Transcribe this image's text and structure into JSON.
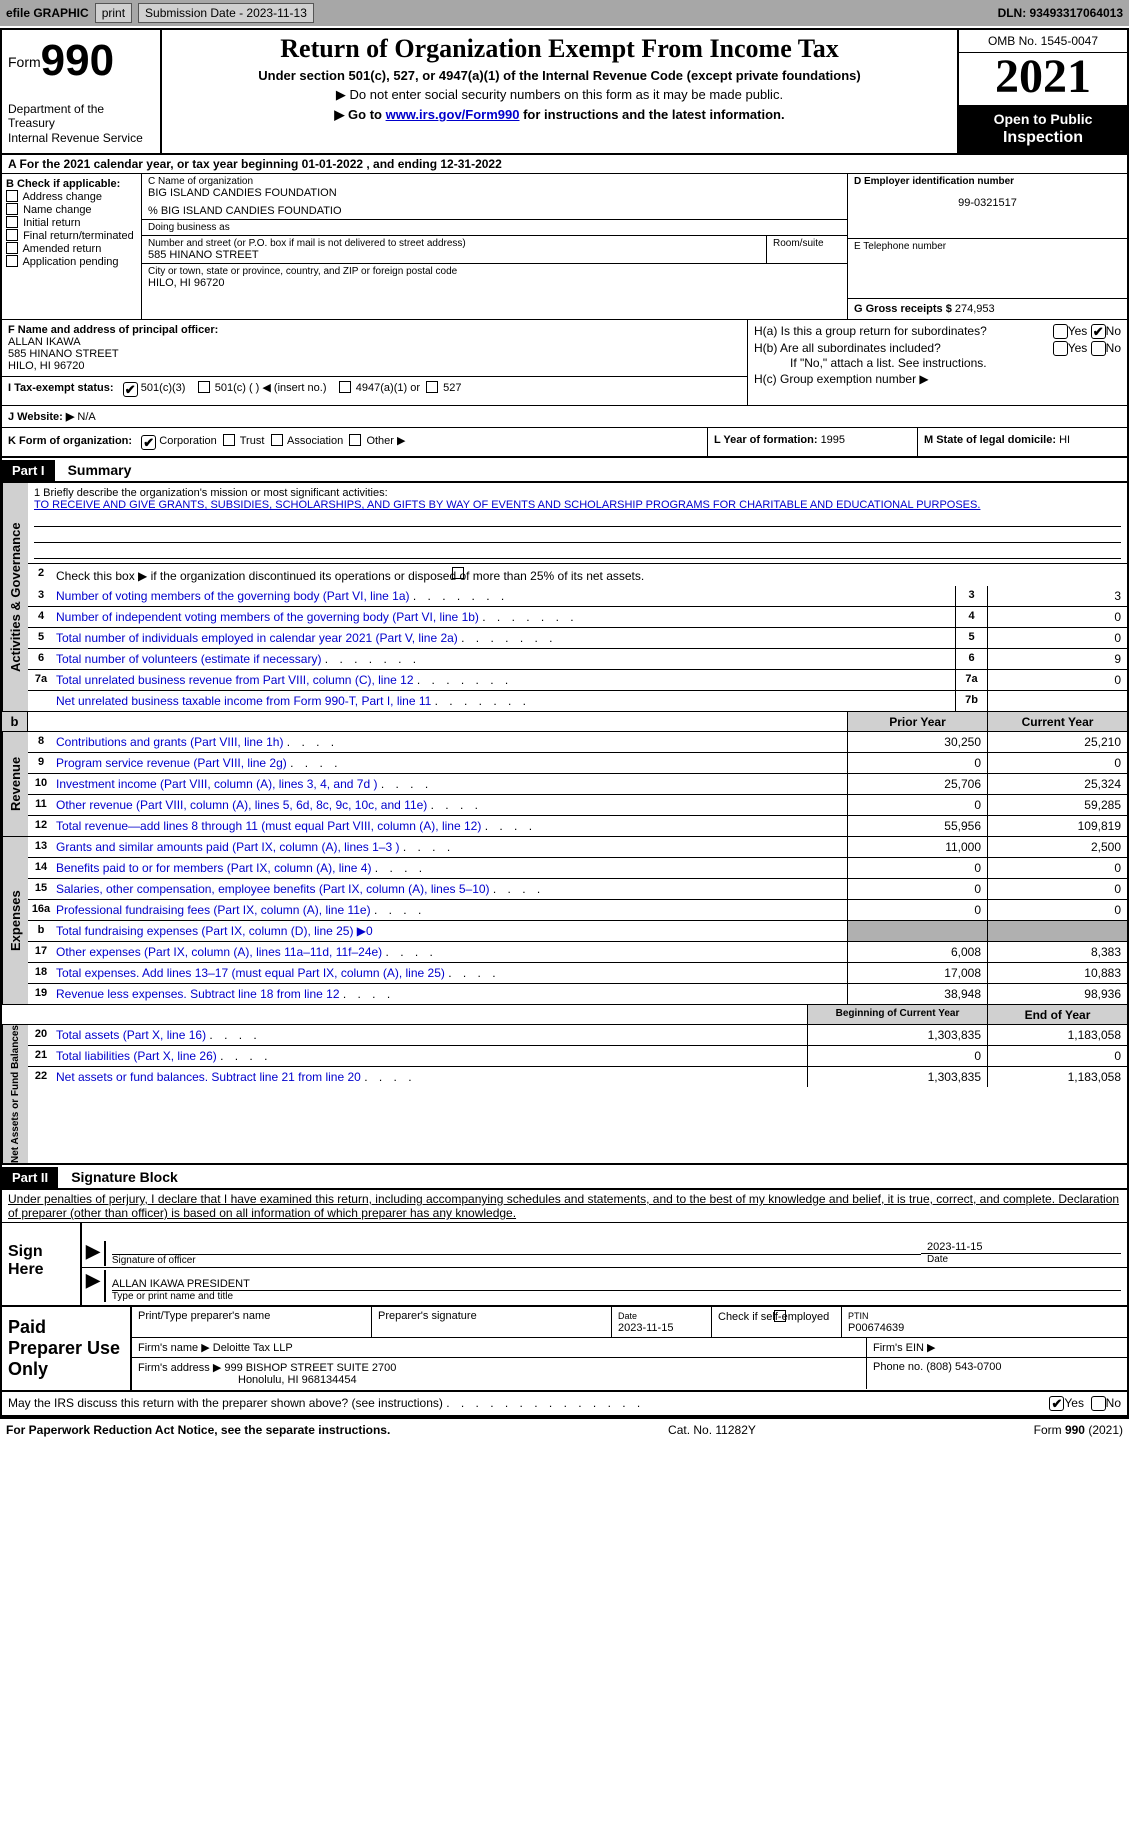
{
  "topbar": {
    "efile_label": "efile GRAPHIC",
    "print_btn": "print",
    "submission_label": "Submission Date - 2023-11-13",
    "dln": "DLN: 93493317064013"
  },
  "header": {
    "form_word": "Form",
    "form_num": "990",
    "dept": "Department of the Treasury\nInternal Revenue Service",
    "title": "Return of Organization Exempt From Income Tax",
    "subtitle": "Under section 501(c), 527, or 4947(a)(1) of the Internal Revenue Code (except private foundations)",
    "note1": "▶ Do not enter social security numbers on this form as it may be made public.",
    "note2_pre": "▶ Go to ",
    "note2_link": "www.irs.gov/Form990",
    "note2_post": " for instructions and the latest information.",
    "omb": "OMB No. 1545-0047",
    "year": "2021",
    "inspect1": "Open to Public",
    "inspect2": "Inspection"
  },
  "rowA": "A  For the 2021 calendar year, or tax year beginning 01-01-2022    , and ending 12-31-2022",
  "B": {
    "label": "B Check if applicable:",
    "opts": [
      "Address change",
      "Name change",
      "Initial return",
      "Final return/terminated",
      "Amended return",
      "Application pending"
    ]
  },
  "C": {
    "name_lbl": "C Name of organization",
    "name": "BIG ISLAND CANDIES FOUNDATION",
    "care_of": "% BIG ISLAND CANDIES FOUNDATIO",
    "dba_lbl": "Doing business as",
    "dba": "",
    "street_lbl": "Number and street (or P.O. box if mail is not delivered to street address)",
    "room_lbl": "Room/suite",
    "street": "585 HINANO STREET",
    "city_lbl": "City or town, state or province, country, and ZIP or foreign postal code",
    "city": "HILO, HI  96720"
  },
  "D": {
    "lbl": "D Employer identification number",
    "val": "99-0321517"
  },
  "E": {
    "lbl": "E Telephone number",
    "val": ""
  },
  "G": {
    "lbl": "G Gross receipts $ ",
    "val": "274,953"
  },
  "F": {
    "lbl": "F  Name and address of principal officer:",
    "name": "ALLAN IKAWA",
    "street": "585 HINANO STREET",
    "city": "HILO, HI  96720"
  },
  "H": {
    "a_q": "H(a)  Is this a group return for subordinates?",
    "b_q": "H(b)  Are all subordinates included?",
    "b_note": "If \"No,\" attach a list. See instructions.",
    "c_q": "H(c)  Group exemption number ▶",
    "yes": "Yes",
    "no": "No"
  },
  "I": {
    "lbl": "I   Tax-exempt status:",
    "o1": "501(c)(3)",
    "o2": "501(c) (  ) ◀ (insert no.)",
    "o3": "4947(a)(1) or",
    "o4": "527"
  },
  "J": {
    "lbl": "J   Website: ▶",
    "val": "  N/A"
  },
  "K": {
    "lbl": "K Form of organization:",
    "o1": "Corporation",
    "o2": "Trust",
    "o3": "Association",
    "o4": "Other ▶"
  },
  "L": {
    "lbl": "L Year of formation: ",
    "val": "1995"
  },
  "M": {
    "lbl": "M State of legal domicile: ",
    "val": "HI"
  },
  "partI": {
    "hdr": "Part I",
    "title": "Summary",
    "mission_lbl": "1   Briefly describe the organization's mission or most significant activities:",
    "mission": "TO RECEIVE AND GIVE GRANTS, SUBSIDIES, SCHOLARSHIPS, AND GIFTS BY WAY OF EVENTS AND SCHOLARSHIP PROGRAMS FOR CHARITABLE AND EDUCATIONAL PURPOSES.",
    "line2": "Check this box ▶        if the organization discontinued its operations or disposed of more than 25% of its net assets.",
    "side_ag": "Activities & Governance",
    "side_rev": "Revenue",
    "side_exp": "Expenses",
    "side_net": "Net Assets or Fund Balances"
  },
  "lines_ag": [
    {
      "n": "3",
      "t": "Number of voting members of the governing body (Part VI, line 1a)",
      "box": "3",
      "v": "3"
    },
    {
      "n": "4",
      "t": "Number of independent voting members of the governing body (Part VI, line 1b)",
      "box": "4",
      "v": "0"
    },
    {
      "n": "5",
      "t": "Total number of individuals employed in calendar year 2021 (Part V, line 2a)",
      "box": "5",
      "v": "0"
    },
    {
      "n": "6",
      "t": "Total number of volunteers (estimate if necessary)",
      "box": "6",
      "v": "9"
    },
    {
      "n": "7a",
      "t": "Total unrelated business revenue from Part VIII, column (C), line 12",
      "box": "7a",
      "v": "0"
    },
    {
      "n": "",
      "t": "Net unrelated business taxable income from Form 990-T, Part I, line 11",
      "box": "7b",
      "v": ""
    }
  ],
  "hdr_prior": "Prior Year",
  "hdr_current": "Current Year",
  "lines_rev": [
    {
      "n": "8",
      "t": "Contributions and grants (Part VIII, line 1h)",
      "p": "30,250",
      "c": "25,210"
    },
    {
      "n": "9",
      "t": "Program service revenue (Part VIII, line 2g)",
      "p": "0",
      "c": "0"
    },
    {
      "n": "10",
      "t": "Investment income (Part VIII, column (A), lines 3, 4, and 7d )",
      "p": "25,706",
      "c": "25,324"
    },
    {
      "n": "11",
      "t": "Other revenue (Part VIII, column (A), lines 5, 6d, 8c, 9c, 10c, and 11e)",
      "p": "0",
      "c": "59,285"
    },
    {
      "n": "12",
      "t": "Total revenue—add lines 8 through 11 (must equal Part VIII, column (A), line 12)",
      "p": "55,956",
      "c": "109,819"
    }
  ],
  "lines_exp": [
    {
      "n": "13",
      "t": "Grants and similar amounts paid (Part IX, column (A), lines 1–3 )",
      "p": "11,000",
      "c": "2,500"
    },
    {
      "n": "14",
      "t": "Benefits paid to or for members (Part IX, column (A), line 4)",
      "p": "0",
      "c": "0"
    },
    {
      "n": "15",
      "t": "Salaries, other compensation, employee benefits (Part IX, column (A), lines 5–10)",
      "p": "0",
      "c": "0"
    },
    {
      "n": "16a",
      "t": "Professional fundraising fees (Part IX, column (A), line 11e)",
      "p": "0",
      "c": "0"
    },
    {
      "n": "b",
      "t": "Total fundraising expenses (Part IX, column (D), line 25) ▶0",
      "grey": true
    },
    {
      "n": "17",
      "t": "Other expenses (Part IX, column (A), lines 11a–11d, 11f–24e)",
      "p": "6,008",
      "c": "8,383"
    },
    {
      "n": "18",
      "t": "Total expenses. Add lines 13–17 (must equal Part IX, column (A), line 25)",
      "p": "17,008",
      "c": "10,883"
    },
    {
      "n": "19",
      "t": "Revenue less expenses. Subtract line 18 from line 12",
      "p": "38,948",
      "c": "98,936"
    }
  ],
  "hdr_beg": "Beginning of Current Year",
  "hdr_end": "End of Year",
  "lines_net": [
    {
      "n": "20",
      "t": "Total assets (Part X, line 16)",
      "p": "1,303,835",
      "c": "1,183,058"
    },
    {
      "n": "21",
      "t": "Total liabilities (Part X, line 26)",
      "p": "0",
      "c": "0"
    },
    {
      "n": "22",
      "t": "Net assets or fund balances. Subtract line 21 from line 20",
      "p": "1,303,835",
      "c": "1,183,058"
    }
  ],
  "partII": {
    "hdr": "Part II",
    "title": "Signature Block"
  },
  "perjury": "Under penalties of perjury, I declare that I have examined this return, including accompanying schedules and statements, and to the best of my knowledge and belief, it is true, correct, and complete. Declaration of preparer (other than officer) is based on all information of which preparer has any knowledge.",
  "sign": {
    "label": "Sign Here",
    "sig_of": "Signature of officer",
    "date": "2023-11-15",
    "date_lbl": "Date",
    "name": "ALLAN IKAWA  PRESIDENT",
    "name_lbl": "Type or print name and title"
  },
  "paid": {
    "label": "Paid Preparer Use Only",
    "c1": "Print/Type preparer's name",
    "c2": "Preparer's signature",
    "c3_lbl": "Date",
    "c3": "2023-11-15",
    "c4": "Check          if self-employed",
    "c5_lbl": "PTIN",
    "c5": "P00674639",
    "firm_lbl": "Firm's name    ▶",
    "firm": "Deloitte Tax LLP",
    "ein_lbl": "Firm's EIN ▶",
    "addr_lbl": "Firm's address ▶",
    "addr1": "999 BISHOP STREET SUITE 2700",
    "addr2": "Honolulu, HI  968134454",
    "phone_lbl": "Phone no. ",
    "phone": "(808) 543-0700"
  },
  "discuss": "May the IRS discuss this return with the preparer shown above? (see instructions)",
  "footer": {
    "left": "For Paperwork Reduction Act Notice, see the separate instructions.",
    "mid": "Cat. No. 11282Y",
    "right": "Form 990 (2021)"
  }
}
